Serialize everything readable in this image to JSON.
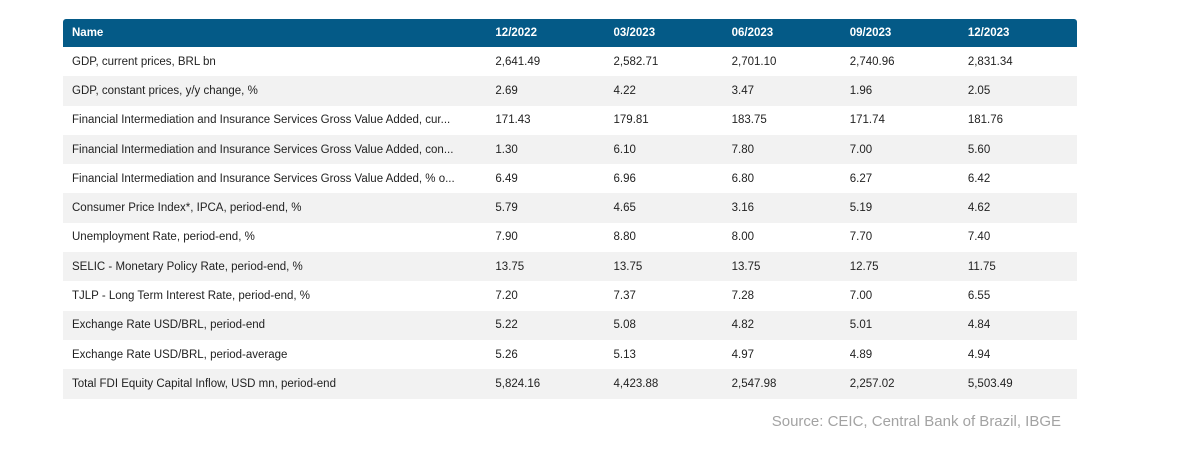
{
  "table": {
    "headers": [
      "Name",
      "12/2022",
      "03/2023",
      "06/2023",
      "09/2023",
      "12/2023"
    ],
    "rows": [
      [
        "GDP, current prices, BRL bn",
        "2,641.49",
        "2,582.71",
        "2,701.10",
        "2,740.96",
        "2,831.34"
      ],
      [
        "GDP, constant prices, y/y change, %",
        "2.69",
        "4.22",
        "3.47",
        "1.96",
        "2.05"
      ],
      [
        "Financial Intermediation and Insurance Services Gross Value Added, cur...",
        "171.43",
        "179.81",
        "183.75",
        "171.74",
        "181.76"
      ],
      [
        "Financial Intermediation and Insurance Services Gross Value Added, con...",
        "1.30",
        "6.10",
        "7.80",
        "7.00",
        "5.60"
      ],
      [
        "Financial Intermediation and Insurance Services Gross Value Added, % o...",
        "6.49",
        "6.96",
        "6.80",
        "6.27",
        "6.42"
      ],
      [
        "Consumer Price Index*, IPCA, period-end, %",
        "5.79",
        "4.65",
        "3.16",
        "5.19",
        "4.62"
      ],
      [
        "Unemployment Rate, period-end, %",
        "7.90",
        "8.80",
        "8.00",
        "7.70",
        "7.40"
      ],
      [
        "SELIC - Monetary Policy Rate, period-end, %",
        "13.75",
        "13.75",
        "13.75",
        "12.75",
        "11.75"
      ],
      [
        "TJLP - Long Term Interest Rate, period-end, %",
        "7.20",
        "7.37",
        "7.28",
        "7.00",
        "6.55"
      ],
      [
        "Exchange Rate USD/BRL, period-end",
        "5.22",
        "5.08",
        "4.82",
        "5.01",
        "4.84"
      ],
      [
        "Exchange Rate USD/BRL, period-average",
        "5.26",
        "5.13",
        "4.97",
        "4.89",
        "4.94"
      ],
      [
        "Total FDI Equity Capital Inflow, USD mn, period-end",
        "5,824.16",
        "4,423.88",
        "2,547.98",
        "2,257.02",
        "5,503.49"
      ]
    ]
  },
  "source": "Source: CEIC, Central Bank of Brazil, IBGE",
  "colors": {
    "header_bg": "#045a87",
    "header_text": "#ffffff",
    "stripe": "#f2f2f2",
    "source_text": "#a3a3a3"
  }
}
